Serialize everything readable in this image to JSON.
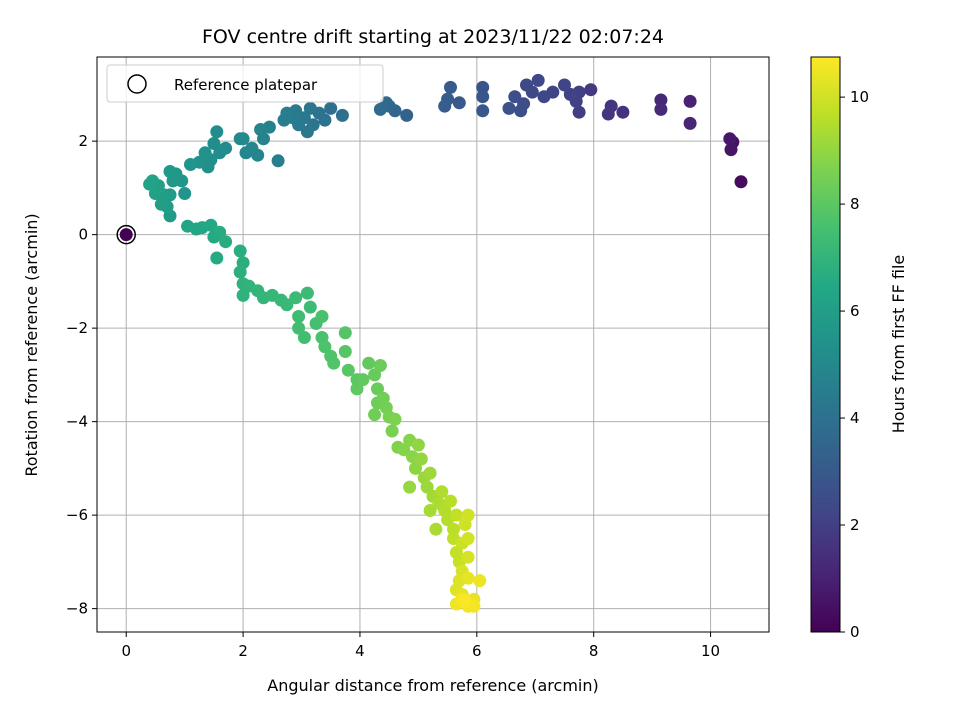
{
  "chart_data": {
    "type": "scatter",
    "title": "FOV centre drift starting at 2023/11/22 02:07:24",
    "xlabel": "Angular distance from reference (arcmin)",
    "ylabel": "Rotation from reference (arcmin)",
    "xlim": [
      -0.5,
      11.0
    ],
    "ylim": [
      -8.5,
      3.8
    ],
    "xticks": [
      0,
      2,
      4,
      6,
      8,
      10
    ],
    "yticks": [
      -8,
      -6,
      -4,
      -2,
      0,
      2
    ],
    "grid": true,
    "legend": {
      "placement": "top-left",
      "entries": [
        "Reference platepar"
      ]
    },
    "reference_point": {
      "x": 0,
      "y": 0
    },
    "colorbar": {
      "label": "Hours from first FF file",
      "range": [
        0,
        10.75
      ],
      "ticks": [
        0,
        2,
        4,
        6,
        8,
        10
      ],
      "colormap": "viridis"
    },
    "series": [
      {
        "values_xyt": [
          [
            0.0,
            0.0,
            0.0
          ],
          [
            10.52,
            1.13,
            0.3
          ],
          [
            10.38,
            1.98,
            0.5
          ],
          [
            10.35,
            1.82,
            0.6
          ],
          [
            10.33,
            2.05,
            0.7
          ],
          [
            9.65,
            2.85,
            1.0
          ],
          [
            9.65,
            2.38,
            1.1
          ],
          [
            9.15,
            2.88,
            1.2
          ],
          [
            9.15,
            2.68,
            1.3
          ],
          [
            8.5,
            2.62,
            1.5
          ],
          [
            8.3,
            2.75,
            1.6
          ],
          [
            8.25,
            2.58,
            1.7
          ],
          [
            7.95,
            3.1,
            1.8
          ],
          [
            7.75,
            2.62,
            1.9
          ],
          [
            7.75,
            3.05,
            2.0
          ],
          [
            7.7,
            2.85,
            2.05
          ],
          [
            7.6,
            3.0,
            2.1
          ],
          [
            7.5,
            3.2,
            2.15
          ],
          [
            7.3,
            3.05,
            2.2
          ],
          [
            7.15,
            2.95,
            2.25
          ],
          [
            7.05,
            3.3,
            2.3
          ],
          [
            6.95,
            3.05,
            2.35
          ],
          [
            6.85,
            3.2,
            2.4
          ],
          [
            6.8,
            2.8,
            2.5
          ],
          [
            6.75,
            2.65,
            2.55
          ],
          [
            6.65,
            2.95,
            2.6
          ],
          [
            6.55,
            2.7,
            2.7
          ],
          [
            6.1,
            3.15,
            2.8
          ],
          [
            6.1,
            2.95,
            2.85
          ],
          [
            6.1,
            2.65,
            2.9
          ],
          [
            5.7,
            2.82,
            3.0
          ],
          [
            5.55,
            3.15,
            3.05
          ],
          [
            5.5,
            2.9,
            3.1
          ],
          [
            5.45,
            2.75,
            3.15
          ],
          [
            4.8,
            2.55,
            3.4
          ],
          [
            4.6,
            2.65,
            3.5
          ],
          [
            4.5,
            2.75,
            3.55
          ],
          [
            4.45,
            2.82,
            3.6
          ],
          [
            4.35,
            2.68,
            3.7
          ],
          [
            3.7,
            2.55,
            3.9
          ],
          [
            3.5,
            2.7,
            4.0
          ],
          [
            3.4,
            2.45,
            4.05
          ],
          [
            3.3,
            2.6,
            4.1
          ],
          [
            3.2,
            2.35,
            4.15
          ],
          [
            3.15,
            2.7,
            4.2
          ],
          [
            3.1,
            2.2,
            4.25
          ],
          [
            3.05,
            2.5,
            4.3
          ],
          [
            2.95,
            2.35,
            4.35
          ],
          [
            2.9,
            2.65,
            4.4
          ],
          [
            2.85,
            2.5,
            4.45
          ],
          [
            2.75,
            2.6,
            4.5
          ],
          [
            2.7,
            2.45,
            4.55
          ],
          [
            2.6,
            1.58,
            4.6
          ],
          [
            2.45,
            2.3,
            4.7
          ],
          [
            2.35,
            2.05,
            4.75
          ],
          [
            2.3,
            2.25,
            4.8
          ],
          [
            2.25,
            1.7,
            4.85
          ],
          [
            2.15,
            1.85,
            4.9
          ],
          [
            2.05,
            1.75,
            4.95
          ],
          [
            2.0,
            2.05,
            5.0
          ],
          [
            1.95,
            2.05,
            5.05
          ],
          [
            1.7,
            1.85,
            5.1
          ],
          [
            1.6,
            1.75,
            5.15
          ],
          [
            1.55,
            2.2,
            5.2
          ],
          [
            1.5,
            1.95,
            5.25
          ],
          [
            1.45,
            1.6,
            5.3
          ],
          [
            1.4,
            1.45,
            5.35
          ],
          [
            1.35,
            1.75,
            5.4
          ],
          [
            1.25,
            1.55,
            5.45
          ],
          [
            1.1,
            1.5,
            5.5
          ],
          [
            1.0,
            0.88,
            5.55
          ],
          [
            0.95,
            1.15,
            5.6
          ],
          [
            0.85,
            1.3,
            5.65
          ],
          [
            0.8,
            1.15,
            5.7
          ],
          [
            0.75,
            1.35,
            5.75
          ],
          [
            0.75,
            0.85,
            5.8
          ],
          [
            0.75,
            0.4,
            5.85
          ],
          [
            0.7,
            0.6,
            5.9
          ],
          [
            0.65,
            0.85,
            5.95
          ],
          [
            0.6,
            0.65,
            6.0
          ],
          [
            0.55,
            1.05,
            6.05
          ],
          [
            0.5,
            0.88,
            6.1
          ],
          [
            0.45,
            1.15,
            6.15
          ],
          [
            0.4,
            1.08,
            6.2
          ],
          [
            1.05,
            0.18,
            6.3
          ],
          [
            1.2,
            0.12,
            6.35
          ],
          [
            1.3,
            0.15,
            6.4
          ],
          [
            1.45,
            0.2,
            6.45
          ],
          [
            1.5,
            -0.05,
            6.5
          ],
          [
            1.55,
            -0.5,
            6.55
          ],
          [
            1.6,
            0.05,
            6.6
          ],
          [
            1.7,
            -0.15,
            6.65
          ],
          [
            1.95,
            -0.35,
            6.7
          ],
          [
            2.0,
            -0.6,
            6.75
          ],
          [
            1.95,
            -0.8,
            6.8
          ],
          [
            2.0,
            -1.05,
            6.85
          ],
          [
            2.0,
            -1.3,
            6.9
          ],
          [
            2.1,
            -1.1,
            6.95
          ],
          [
            2.25,
            -1.2,
            7.0
          ],
          [
            2.35,
            -1.35,
            7.05
          ],
          [
            2.5,
            -1.3,
            7.1
          ],
          [
            2.65,
            -1.4,
            7.15
          ],
          [
            2.75,
            -1.5,
            7.2
          ],
          [
            2.9,
            -1.35,
            7.25
          ],
          [
            3.1,
            -1.25,
            7.3
          ],
          [
            3.15,
            -1.55,
            7.35
          ],
          [
            2.95,
            -1.75,
            7.4
          ],
          [
            2.95,
            -2.0,
            7.45
          ],
          [
            3.05,
            -2.2,
            7.5
          ],
          [
            3.25,
            -1.9,
            7.55
          ],
          [
            3.35,
            -1.75,
            7.6
          ],
          [
            3.35,
            -2.2,
            7.65
          ],
          [
            3.4,
            -2.4,
            7.7
          ],
          [
            3.5,
            -2.6,
            7.75
          ],
          [
            3.55,
            -2.75,
            7.8
          ],
          [
            3.75,
            -2.1,
            7.85
          ],
          [
            3.75,
            -2.5,
            7.9
          ],
          [
            3.8,
            -2.9,
            7.95
          ],
          [
            3.95,
            -3.1,
            8.0
          ],
          [
            3.95,
            -3.3,
            8.05
          ],
          [
            4.05,
            -3.1,
            8.1
          ],
          [
            4.15,
            -2.75,
            8.15
          ],
          [
            4.25,
            -3.0,
            8.2
          ],
          [
            4.3,
            -3.3,
            8.25
          ],
          [
            4.35,
            -2.8,
            8.3
          ],
          [
            4.3,
            -3.6,
            8.35
          ],
          [
            4.25,
            -3.85,
            8.4
          ],
          [
            4.4,
            -3.5,
            8.45
          ],
          [
            4.45,
            -3.7,
            8.5
          ],
          [
            4.5,
            -3.9,
            8.55
          ],
          [
            4.55,
            -4.2,
            8.6
          ],
          [
            4.6,
            -3.95,
            8.65
          ],
          [
            4.65,
            -4.55,
            8.7
          ],
          [
            4.75,
            -4.6,
            8.75
          ],
          [
            4.85,
            -4.4,
            8.8
          ],
          [
            4.9,
            -4.75,
            8.85
          ],
          [
            4.95,
            -5.0,
            8.9
          ],
          [
            5.0,
            -4.5,
            8.95
          ],
          [
            5.05,
            -4.8,
            9.0
          ],
          [
            4.85,
            -5.4,
            9.05
          ],
          [
            5.1,
            -5.2,
            9.1
          ],
          [
            5.15,
            -5.4,
            9.15
          ],
          [
            5.2,
            -5.1,
            9.2
          ],
          [
            5.25,
            -5.6,
            9.25
          ],
          [
            5.2,
            -5.9,
            9.3
          ],
          [
            5.3,
            -6.3,
            9.35
          ],
          [
            5.35,
            -5.75,
            9.4
          ],
          [
            5.4,
            -5.5,
            9.45
          ],
          [
            5.45,
            -5.9,
            9.5
          ],
          [
            5.5,
            -6.1,
            9.55
          ],
          [
            5.55,
            -5.7,
            9.6
          ],
          [
            5.6,
            -6.3,
            9.65
          ],
          [
            5.6,
            -6.5,
            9.7
          ],
          [
            5.65,
            -6.0,
            9.75
          ],
          [
            5.65,
            -6.8,
            9.8
          ],
          [
            5.7,
            -7.0,
            9.85
          ],
          [
            5.75,
            -6.6,
            9.9
          ],
          [
            5.8,
            -6.2,
            9.95
          ],
          [
            5.85,
            -6.0,
            10.0
          ],
          [
            5.85,
            -6.5,
            10.05
          ],
          [
            5.85,
            -6.9,
            10.1
          ],
          [
            5.75,
            -7.2,
            10.15
          ],
          [
            5.7,
            -7.4,
            10.2
          ],
          [
            5.65,
            -7.6,
            10.25
          ],
          [
            5.75,
            -7.7,
            10.3
          ],
          [
            5.85,
            -7.35,
            10.35
          ],
          [
            5.95,
            -7.8,
            10.4
          ],
          [
            6.05,
            -7.4,
            10.45
          ],
          [
            5.65,
            -7.9,
            10.5
          ],
          [
            5.85,
            -7.95,
            10.55
          ],
          [
            5.95,
            -7.95,
            10.6
          ],
          [
            5.75,
            -7.8,
            10.65
          ],
          [
            5.8,
            -7.85,
            10.7
          ]
        ]
      }
    ]
  }
}
